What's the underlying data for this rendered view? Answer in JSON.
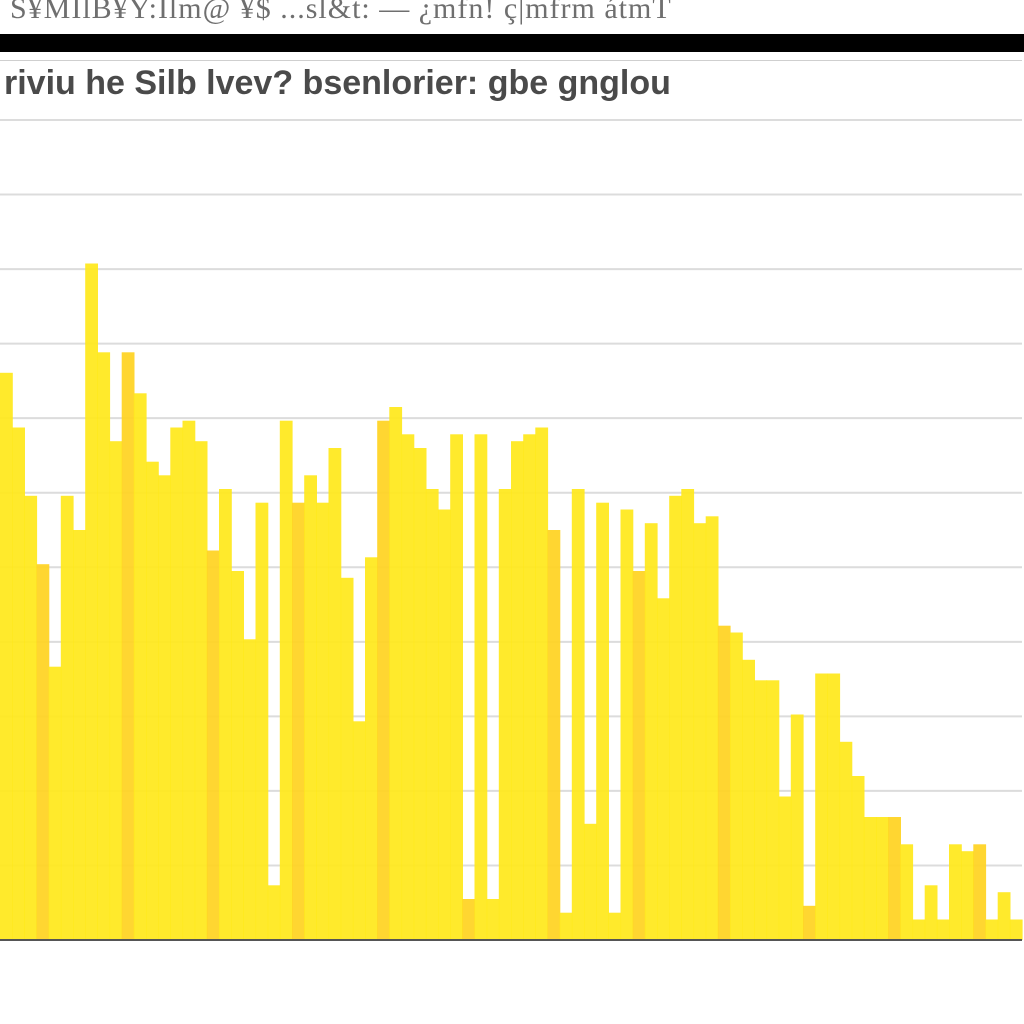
{
  "header": {
    "top_text": "S¥MĪlB¥Y:Ilm@ ¥$ ...sl&t: — ¿mfn! ç|mfrm átmT"
  },
  "chart_data": {
    "type": "bar",
    "title": "riviu he Silb lvev? bsenlorier: gbe gnglou",
    "xlabel": "",
    "ylabel": "",
    "ylim": [
      0,
      12
    ],
    "grid": true,
    "legend": "none",
    "colors": {
      "bar": "#ffe81a",
      "bar_dark": "#ffd21f",
      "grid": "#dcdcdc",
      "axis": "#555555"
    },
    "x_tick_labels": [
      "",
      "",
      "",
      "",
      "",
      "",
      "",
      "",
      "",
      "",
      "",
      "",
      ""
    ],
    "values": [
      8.3,
      7.5,
      6.5,
      5.5,
      4.0,
      6.5,
      6.0,
      9.9,
      8.6,
      7.3,
      8.6,
      8.0,
      7.0,
      6.8,
      7.5,
      7.6,
      7.3,
      5.7,
      6.6,
      5.4,
      4.4,
      6.4,
      0.8,
      7.6,
      6.4,
      6.8,
      6.4,
      7.2,
      5.3,
      3.2,
      5.6,
      7.6,
      7.8,
      7.4,
      7.2,
      6.6,
      6.3,
      7.4,
      0.6,
      7.4,
      0.6,
      6.6,
      7.3,
      7.4,
      7.5,
      6.0,
      0.4,
      6.6,
      1.7,
      6.4,
      0.4,
      6.3,
      5.4,
      6.1,
      5.0,
      6.5,
      6.6,
      6.1,
      6.2,
      4.6,
      4.5,
      4.1,
      3.8,
      3.8,
      2.1,
      3.3,
      0.5,
      3.9,
      3.9,
      2.9,
      2.4,
      1.8,
      1.8,
      1.8,
      1.4,
      0.3,
      0.8,
      0.3,
      1.4,
      1.3,
      1.4,
      0.3,
      0.7,
      0.3
    ]
  }
}
